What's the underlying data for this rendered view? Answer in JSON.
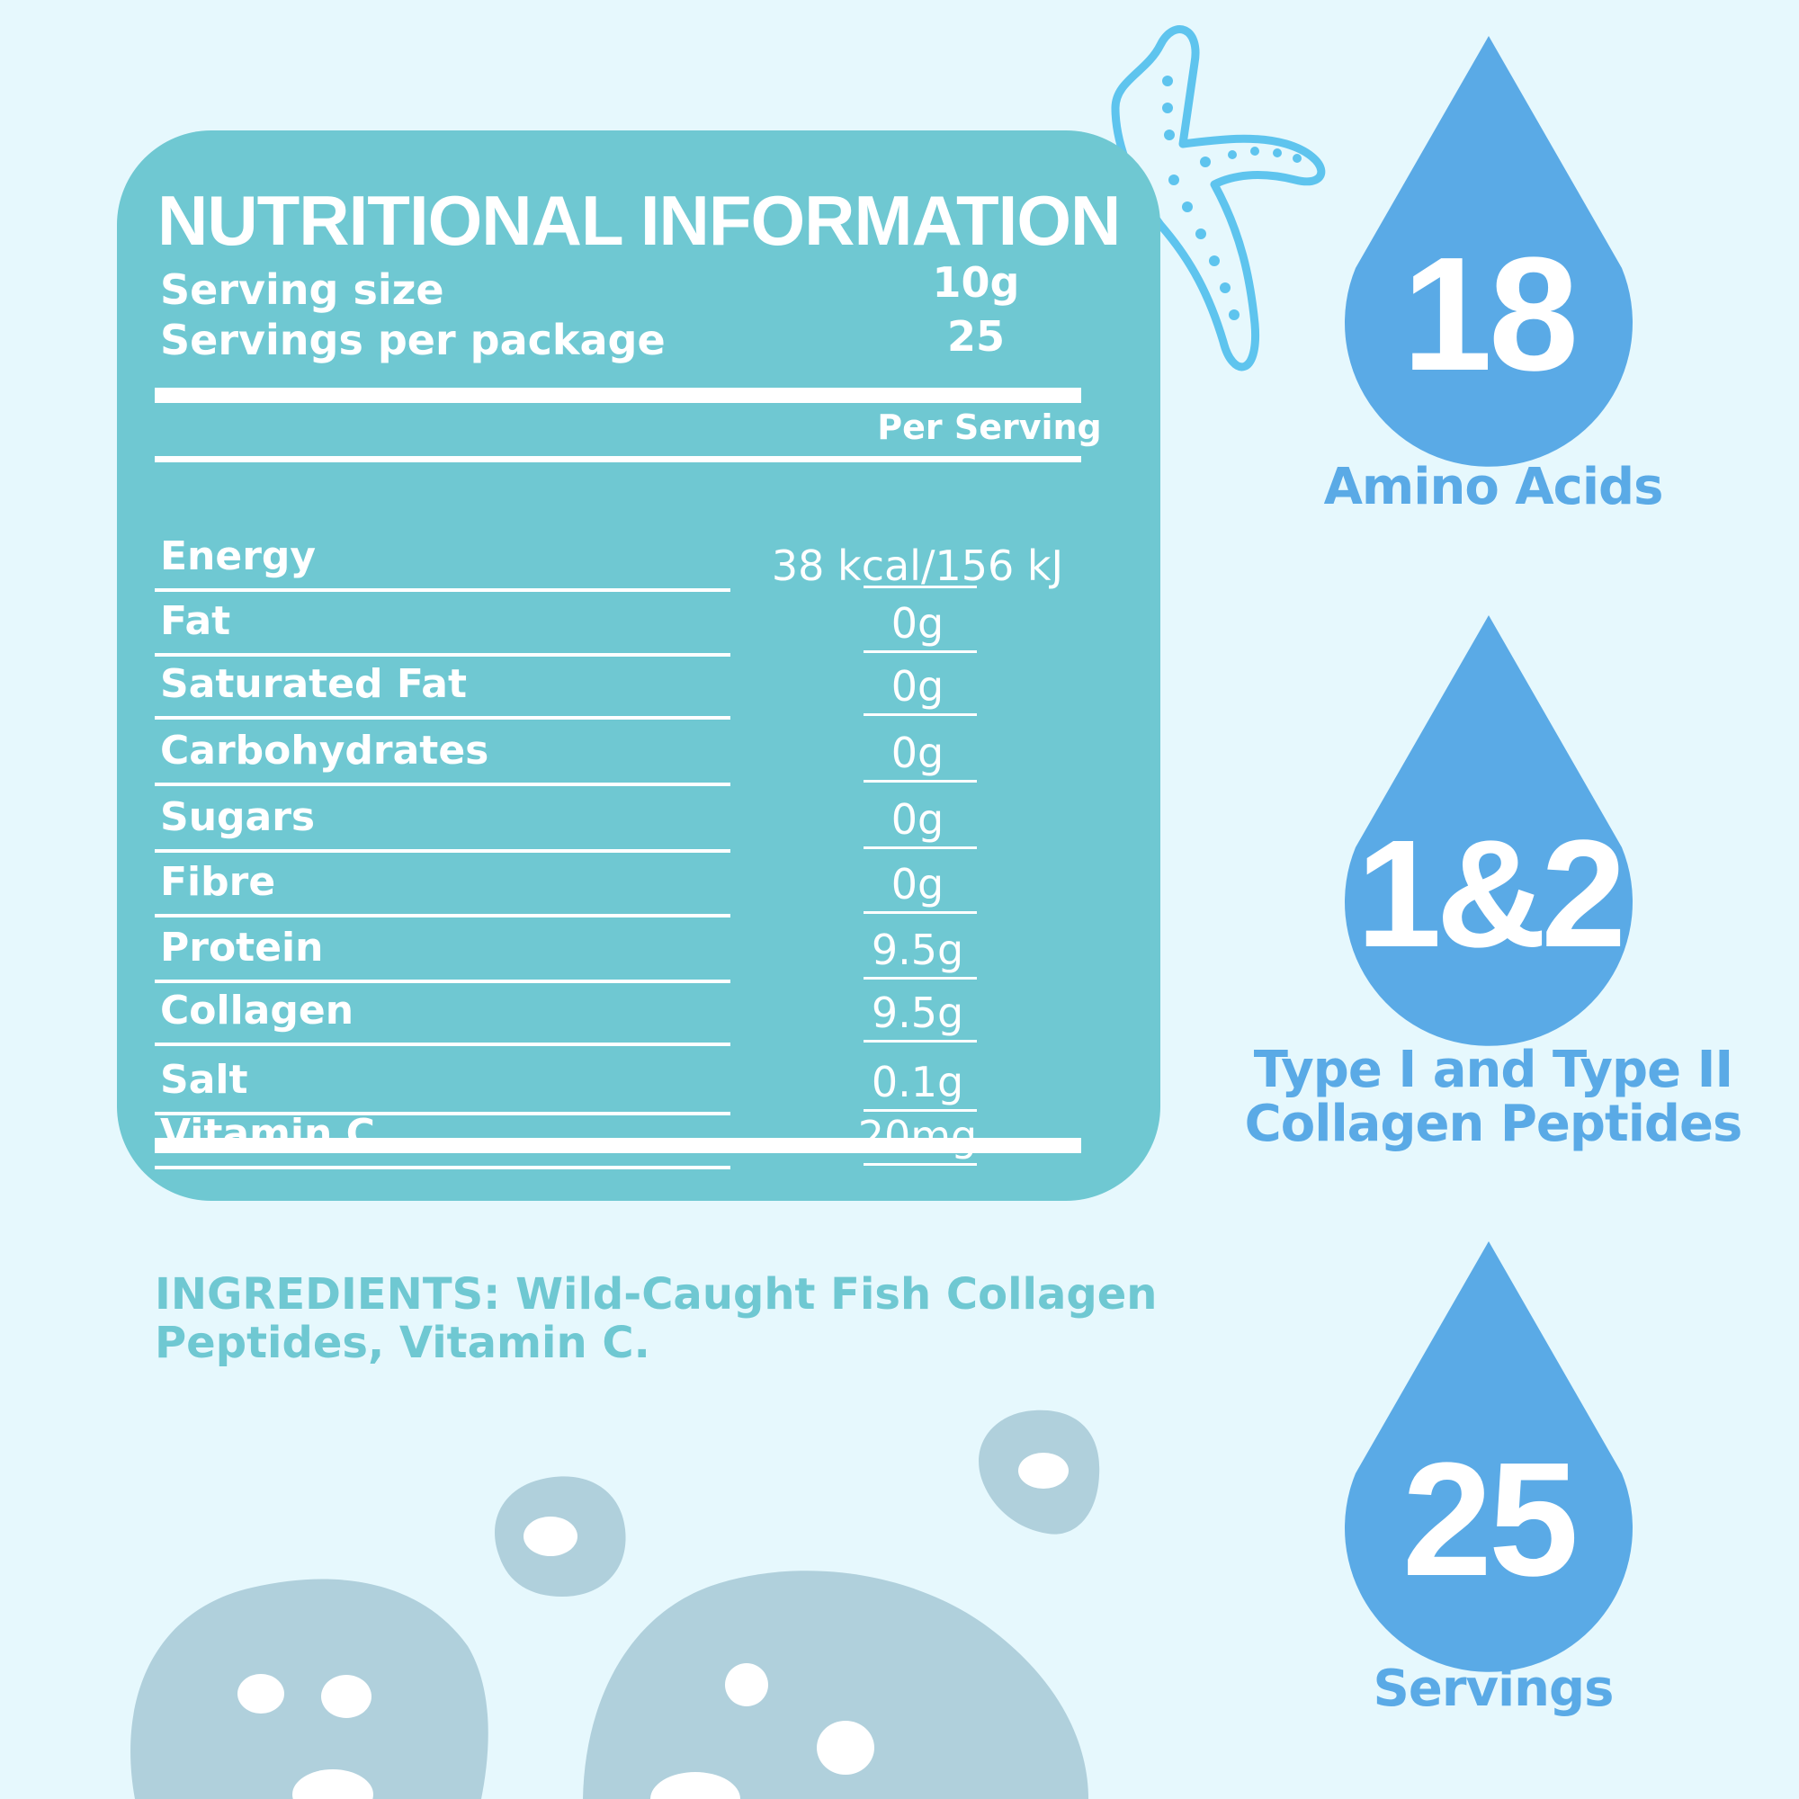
{
  "panel": {
    "title": "NUTRITIONAL INFORMATION",
    "serving_size_label": "Serving size",
    "serving_size_value": "10g",
    "servings_per_package_label": "Servings per package",
    "servings_per_package_value": "25",
    "per_serving_header": "Per Serving",
    "rows": [
      {
        "label": "Energy",
        "value": "38 kcal/156 kJ"
      },
      {
        "label": "Fat",
        "value": "0g"
      },
      {
        "label": "Saturated Fat",
        "value": "0g"
      },
      {
        "label": "Carbohydrates",
        "value": "0g"
      },
      {
        "label": "Sugars",
        "value": "0g"
      },
      {
        "label": "Fibre",
        "value": "0g"
      },
      {
        "label": "Protein",
        "value": "9.5g"
      },
      {
        "label": "Collagen",
        "value": "9.5g"
      },
      {
        "label": "Salt",
        "value": "0.1g"
      },
      {
        "label": "Vitamin C",
        "value": "20mg"
      }
    ]
  },
  "ingredients": "INGREDIENTS: Wild-Caught Fish Collagen Peptides, Vitamin C.",
  "drops": [
    {
      "number": "18",
      "caption": "Amino Acids"
    },
    {
      "number": "1&2",
      "caption": "Type I and Type II Collagen Peptides"
    },
    {
      "number": "25",
      "caption": "Servings"
    }
  ],
  "colors": {
    "background": "#e6f8fd",
    "panel": "#6fc8d2",
    "drop": "#5aaae6",
    "bubbles": "#b0d0dc",
    "starfish_outline": "#5ec4ee"
  },
  "icons": [
    "starfish-icon",
    "water-drop-icon",
    "bubble-icon"
  ]
}
